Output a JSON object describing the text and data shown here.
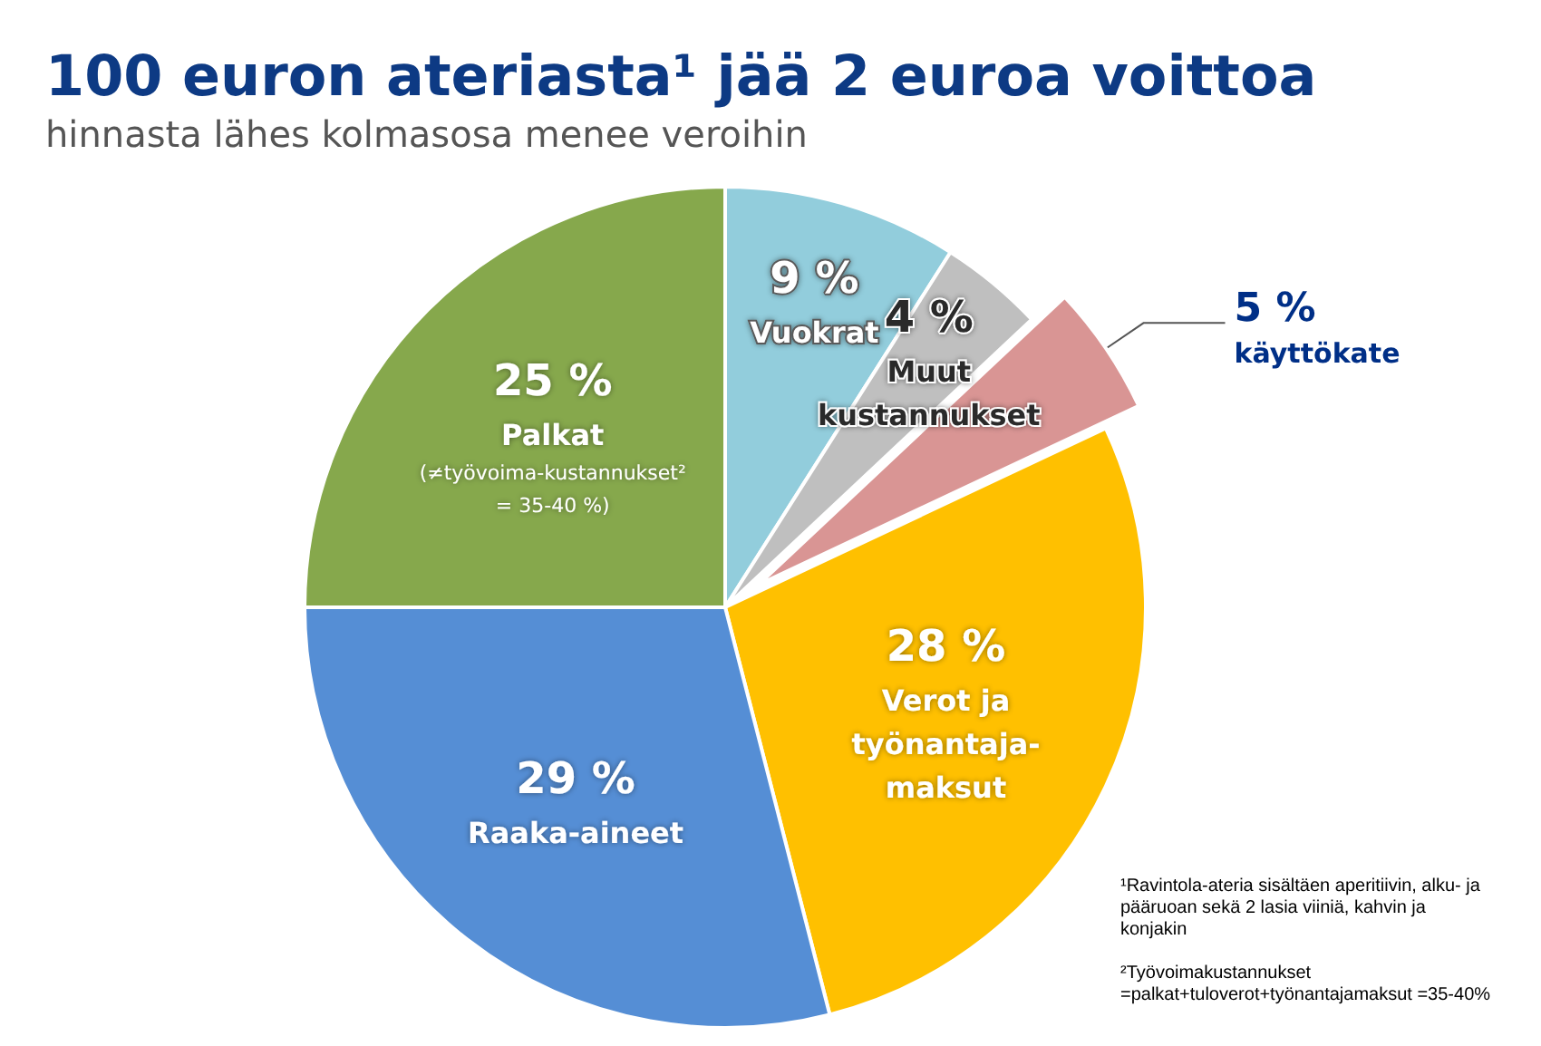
{
  "chart_data": {
    "type": "pie",
    "title": "100 euron ateriasta¹ jää 2 euroa voittoa",
    "subtitle": "hinnasta lähes kolmasosa menee veroihin",
    "categories": [
      "Vuokrat",
      "Muut kustannukset",
      "käyttökate",
      "Verot ja työnantaja-maksut",
      "Raaka-aineet",
      "Palkat"
    ],
    "values": [
      9,
      4,
      5,
      28,
      29,
      25
    ],
    "value_labels": [
      "9 %",
      "4 %",
      "5 %",
      "28 %",
      "29 %",
      "25 %"
    ],
    "colors": [
      "#92cddc",
      "#bfbfbf",
      "#d99594",
      "#ffc000",
      "#558ed5",
      "#86a84c"
    ],
    "annotations": [
      {
        "text": "(≠työvoima-kustannukset² = 35-40 %)",
        "x": "Palkat"
      },
      "¹Ravintola-ateria sisältäen aperitiivin, alku- ja pääruoan sekä 2 lasia viiniä, kahvin ja konjakin",
      "²Työvoimakustannukset =palkat+tuloverot+työnantajamaksut =35-40%"
    ],
    "legend": false
  }
}
